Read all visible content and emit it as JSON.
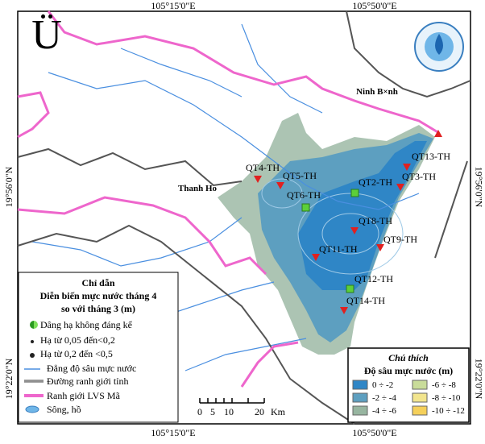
{
  "grid_labels": {
    "top": [
      "105°15'0\"E",
      "105°50'0\"E"
    ],
    "bottom": [
      "105°15'0\"E",
      "105°50'0\"E"
    ],
    "left": [
      "19°56'0\"N",
      "19°22'0\"N"
    ],
    "right": [
      "19°56'0\"N",
      "19°22'0\"N"
    ]
  },
  "north_arrow": "Ü",
  "places": [
    "Ninh B×nh",
    "Thanh Ho"
  ],
  "stations": [
    "QT4-TH",
    "QT5-TH",
    "QT6-TH",
    "QT2-TH",
    "QT13-TH",
    "QT3-TH",
    "QT8-TH",
    "QT9-TH",
    "QT11-TH",
    "QT12-TH",
    "QT14-TH"
  ],
  "legend": {
    "title": "Chỉ dẫn",
    "subtitle": [
      "Diễn biến mực nước tháng 4",
      "so với tháng 3 (m)"
    ],
    "items": [
      "Dâng hạ không đáng kể",
      "Hạ từ 0,05  đến<0,2",
      "Hạ từ 0,2 đến <0,5",
      "Đẳng độ sâu mực nước",
      "Đường ranh giới tỉnh",
      "Ranh giới LVS Mã",
      "Sông, hồ"
    ]
  },
  "scale_bar": {
    "ticks": [
      "0",
      "5",
      "10",
      "20"
    ],
    "unit": "Km"
  },
  "depth_legend": {
    "title": "Chú thích",
    "subtitle": "Độ sâu mực nước (m)",
    "classes": [
      "0 ÷ -2",
      "-2 ÷ -4",
      "-4 ÷ -6",
      "-6 ÷ -8",
      "-8 ÷ -10",
      "-10 ÷ -12"
    ]
  }
}
